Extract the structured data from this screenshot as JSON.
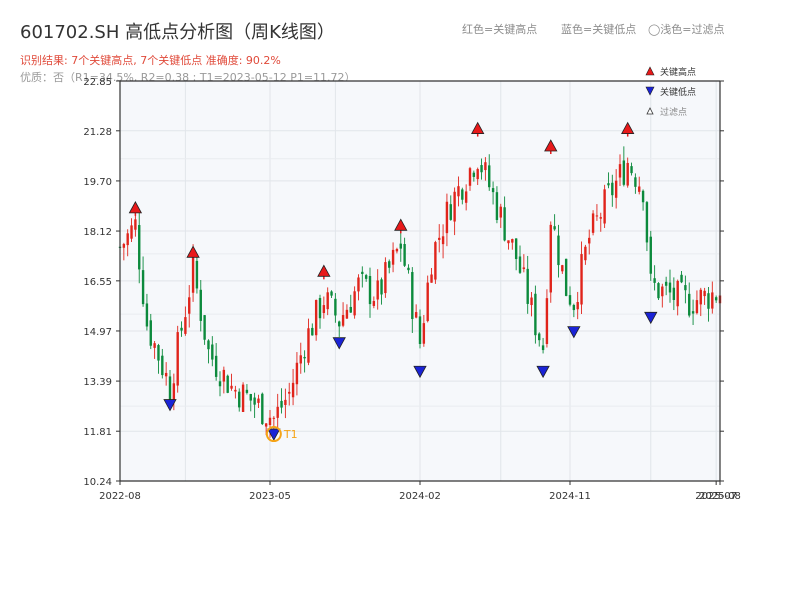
{
  "header": {
    "title": "601702.SH 高低点分析图（周K线图）",
    "subtitle_result": "识别结果: 7个关键高点, 7个关键低点   准确度: 90.2%",
    "subtitle_quality": "优质：否（R1=34.5%, R2=0.38 ; T1=2023-05-12 P1=11.72）",
    "legend_top_red": "红色=关键高点",
    "legend_top_blue": "蓝色=关键低点",
    "legend_top_light": "◯浅色=过滤点"
  },
  "chart_data": {
    "type": "candlestick",
    "title": "601702.SH 高低点分析图（周K线图）",
    "ylim": [
      10.24,
      22.85
    ],
    "yticks": [
      "22.85",
      "21.28",
      "19.70",
      "18.12",
      "16.55",
      "14.97",
      "13.39",
      "11.81",
      "10.24"
    ],
    "xticks": [
      "2022-08",
      "2023-05",
      "2024-02",
      "2024-11",
      "2025-07",
      "2025-08"
    ],
    "x_range": [
      "2022-08-05",
      "2025-08-01"
    ],
    "grid": true,
    "legend": {
      "placement": "top-right",
      "entries": [
        "关键高点",
        "关键低点",
        "过滤点"
      ]
    },
    "colors": {
      "up": "#e0241b",
      "down": "#0c8a3c",
      "high_marker": "#e8191a",
      "low_marker": "#1a23d6",
      "t1_marker": "#f5a316",
      "background": "#f6f8fb"
    },
    "key_highs": [
      {
        "date": "2022-09-02",
        "price": 18.85
      },
      {
        "date": "2022-12-16",
        "price": 17.45
      },
      {
        "date": "2023-08-11",
        "price": 16.85
      },
      {
        "date": "2023-12-29",
        "price": 18.3
      },
      {
        "date": "2024-05-17",
        "price": 21.35
      },
      {
        "date": "2024-09-27",
        "price": 20.8
      },
      {
        "date": "2025-02-14",
        "price": 21.35
      }
    ],
    "key_lows": [
      {
        "date": "2022-11-04",
        "price": 12.65
      },
      {
        "date": "2023-05-12",
        "price": 11.72
      },
      {
        "date": "2023-09-08",
        "price": 14.6
      },
      {
        "date": "2024-02-02",
        "price": 13.7
      },
      {
        "date": "2024-09-13",
        "price": 13.7
      },
      {
        "date": "2024-11-08",
        "price": 14.95
      },
      {
        "date": "2025-03-28",
        "price": 15.4
      }
    ],
    "t1": {
      "label": "T1",
      "date": "2023-05-12",
      "price": 11.72
    },
    "anchors": [
      [
        "2022-08-05",
        17.6
      ],
      [
        "2022-09-02",
        18.3
      ],
      [
        "2022-09-23",
        15.2
      ],
      [
        "2022-11-04",
        13.2
      ],
      [
        "2022-12-16",
        16.9
      ],
      [
        "2023-01-13",
        14.3
      ],
      [
        "2023-02-24",
        13.2
      ],
      [
        "2023-03-31",
        12.8
      ],
      [
        "2023-05-12",
        12.2
      ],
      [
        "2023-06-09",
        13.0
      ],
      [
        "2023-07-07",
        14.6
      ],
      [
        "2023-08-11",
        16.0
      ],
      [
        "2023-09-08",
        15.3
      ],
      [
        "2023-10-13",
        16.4
      ],
      [
        "2023-11-17",
        16.1
      ],
      [
        "2023-12-29",
        17.7
      ],
      [
        "2024-02-02",
        14.6
      ],
      [
        "2024-02-23",
        17.3
      ],
      [
        "2024-03-29",
        19.0
      ],
      [
        "2024-05-17",
        20.5
      ],
      [
        "2024-06-21",
        18.9
      ],
      [
        "2024-07-26",
        17.3
      ],
      [
        "2024-08-30",
        15.2
      ],
      [
        "2024-09-13",
        14.5
      ],
      [
        "2024-09-27",
        18.6
      ],
      [
        "2024-10-25",
        16.3
      ],
      [
        "2024-11-08",
        15.9
      ],
      [
        "2024-12-06",
        17.9
      ],
      [
        "2025-01-10",
        19.2
      ],
      [
        "2025-02-14",
        20.3
      ],
      [
        "2025-03-14",
        19.5
      ],
      [
        "2025-03-28",
        16.4
      ],
      [
        "2025-05-02",
        16.1
      ],
      [
        "2025-06-06",
        15.9
      ],
      [
        "2025-08-01",
        16.2
      ]
    ]
  }
}
